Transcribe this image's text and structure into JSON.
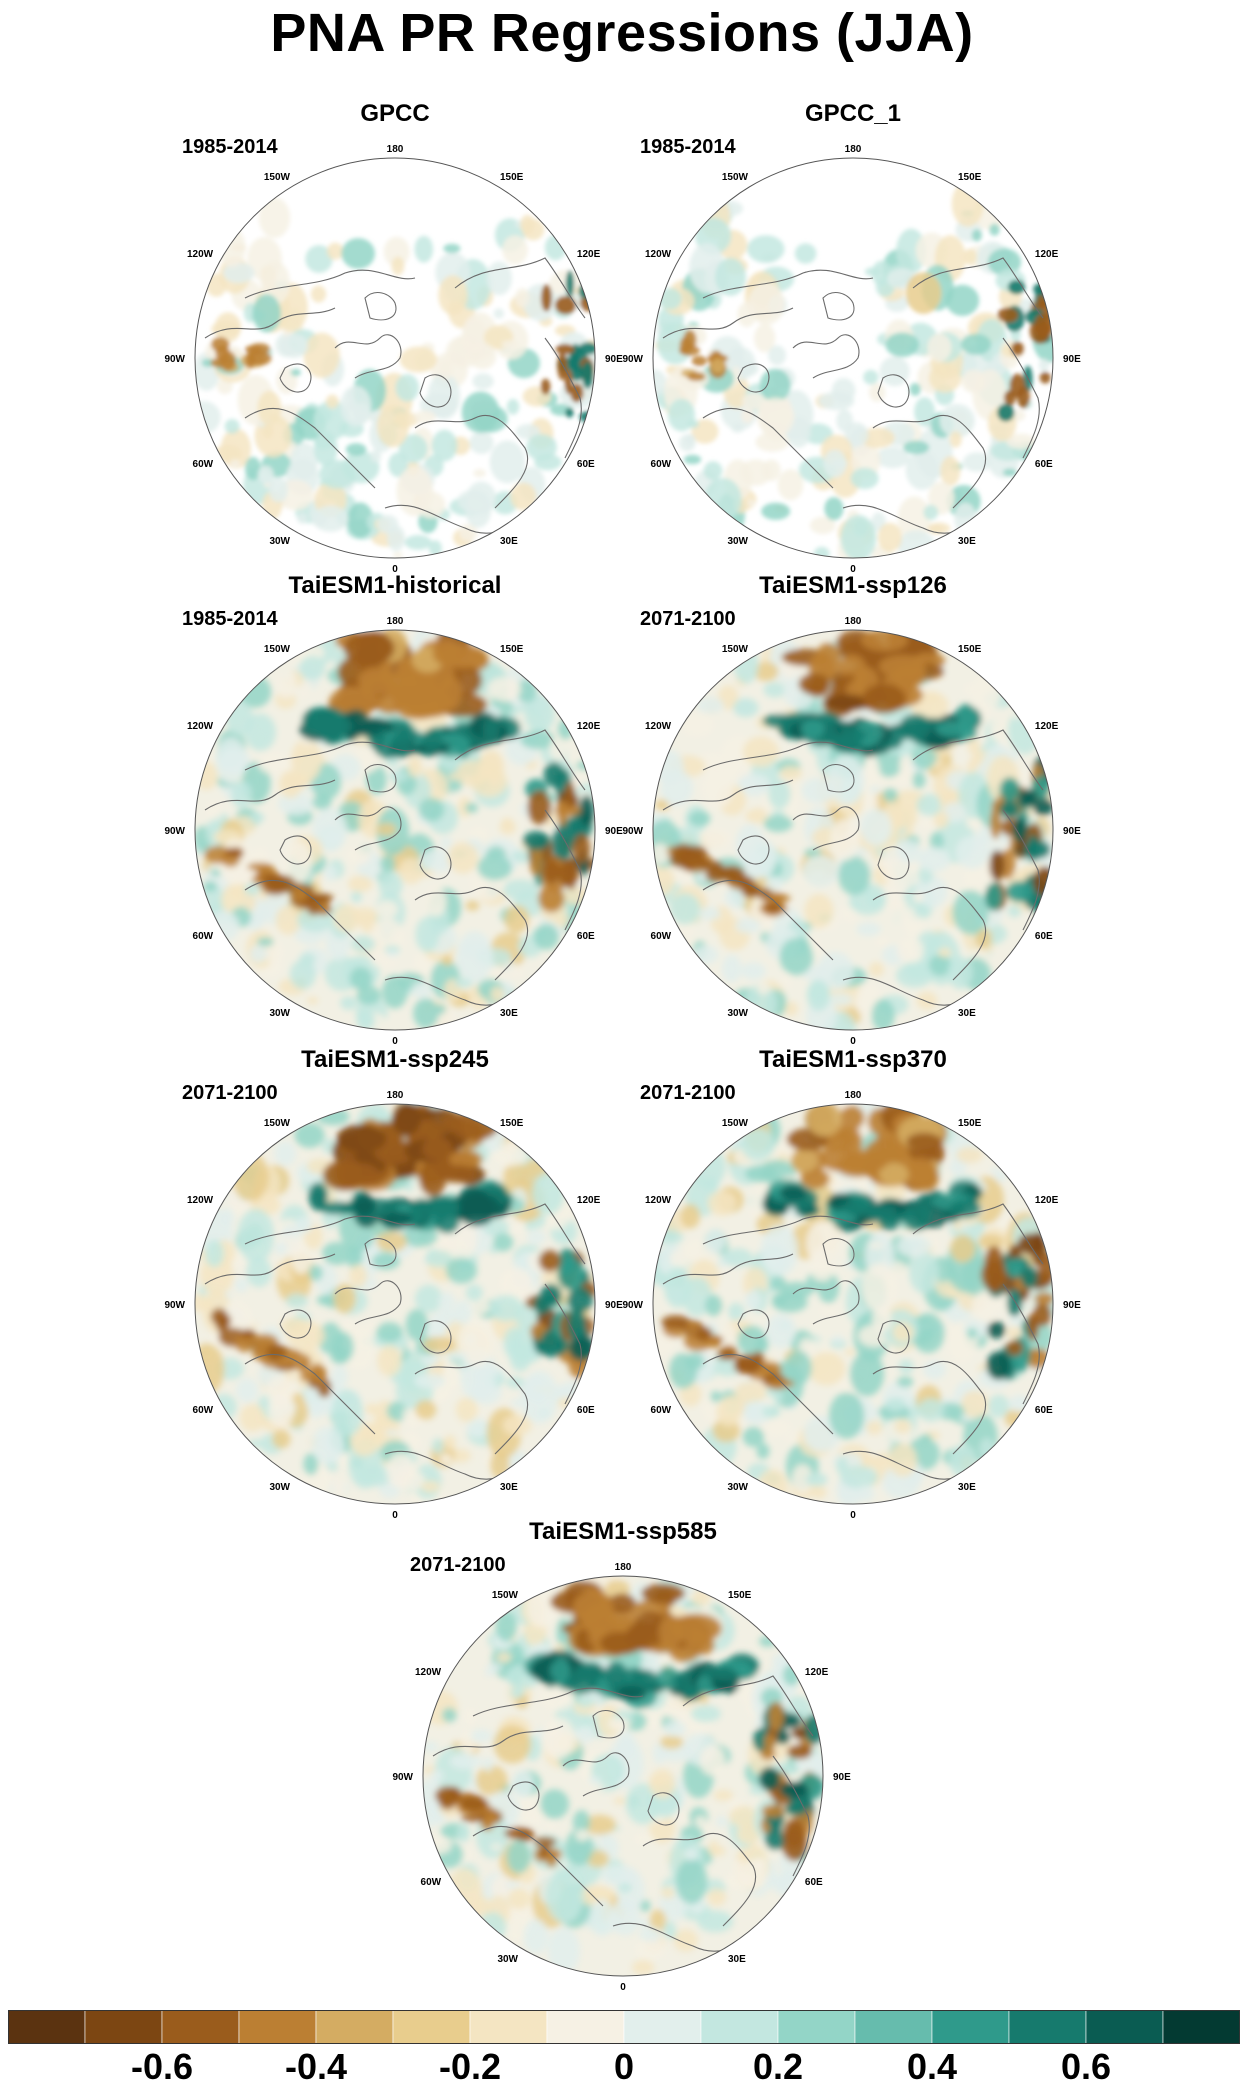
{
  "title": "PNA PR Regressions (JJA)",
  "panels": [
    {
      "title": "GPCC",
      "period": "1985-2014",
      "kind": "obs",
      "seed": 11
    },
    {
      "title": "GPCC_1",
      "period": "1985-2014",
      "kind": "obs",
      "seed": 12
    },
    {
      "title": "TaiESM1-historical",
      "period": "1985-2014",
      "kind": "model",
      "seed": 21
    },
    {
      "title": "TaiESM1-ssp126",
      "period": "2071-2100",
      "kind": "model",
      "seed": 22
    },
    {
      "title": "TaiESM1-ssp245",
      "period": "2071-2100",
      "kind": "model",
      "seed": 23
    },
    {
      "title": "TaiESM1-ssp370",
      "period": "2071-2100",
      "kind": "model",
      "seed": 24
    },
    {
      "title": "TaiESM1-ssp585",
      "period": "2071-2100",
      "kind": "model",
      "seed": 25
    }
  ],
  "longitude_labels": [
    "180",
    "150E",
    "120E",
    "90E",
    "60E",
    "30E",
    "0",
    "30W",
    "60W",
    "90W",
    "120W",
    "150W"
  ],
  "colorbar": {
    "colors": [
      "#5b3310",
      "#7c4612",
      "#9a5c1c",
      "#bb7f33",
      "#d4ac62",
      "#e8cd8d",
      "#f4e5c2",
      "#f6f1e4",
      "#e2efec",
      "#c3e7e0",
      "#93d5c7",
      "#66bcad",
      "#2f9a8b",
      "#167a6d",
      "#0a5c52",
      "#033a32"
    ],
    "tick_labels": [
      "-0.6",
      "-0.4",
      "-0.2",
      "0",
      "0.2",
      "0.4",
      "0.6"
    ],
    "tick_values": [
      -0.6,
      -0.4,
      -0.2,
      0,
      0.2,
      0.4,
      0.6
    ],
    "min": -0.8,
    "max": 0.8
  }
}
